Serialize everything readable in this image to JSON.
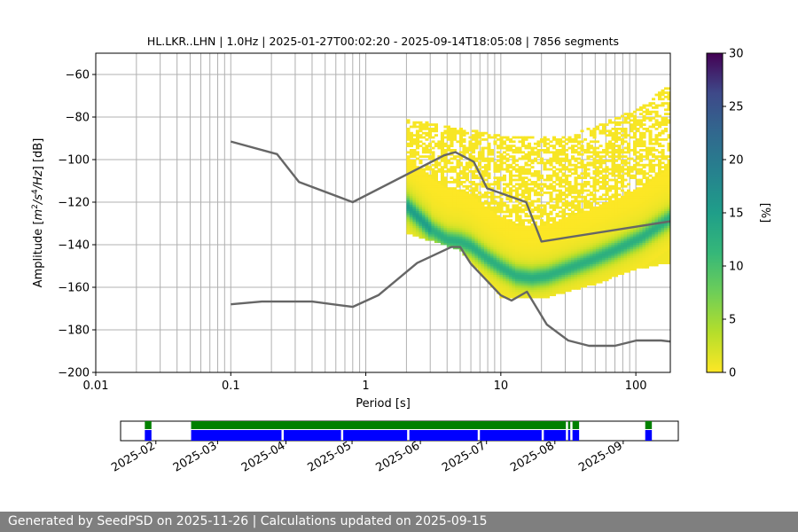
{
  "chart_data": [
    {
      "type": "heatmap",
      "title": "HL.LKR..LHN | 1.0Hz | 2025-01-27T00:02:20 - 2025-09-14T18:05:08 | 7856 segments",
      "xlabel": "Period [s]",
      "ylabel_parts": [
        "Amplitude [",
        "m",
        "2",
        "/s",
        "4",
        "/Hz",
        "] [dB]"
      ],
      "x_scale": "log",
      "xlim": [
        0.01,
        180
      ],
      "ylim": [
        -200,
        -50
      ],
      "x_ticks": [
        {
          "value": 0.01,
          "label": "0.01"
        },
        {
          "value": 0.1,
          "label": "0.1"
        },
        {
          "value": 1,
          "label": "1"
        },
        {
          "value": 10,
          "label": "10"
        },
        {
          "value": 100,
          "label": "100"
        }
      ],
      "y_ticks": [
        {
          "value": -60,
          "label": "−60"
        },
        {
          "value": -80,
          "label": "−80"
        },
        {
          "value": -100,
          "label": "−100"
        },
        {
          "value": -120,
          "label": "−120"
        },
        {
          "value": -140,
          "label": "−140"
        },
        {
          "value": -160,
          "label": "−160"
        },
        {
          "value": -180,
          "label": "−180"
        },
        {
          "value": -200,
          "label": "−200"
        }
      ],
      "grid": true,
      "colormap": "viridis",
      "colorbar": {
        "label": "[%]",
        "range": [
          0,
          30
        ],
        "ticks": [
          {
            "value": 0,
            "label": "0"
          },
          {
            "value": 5,
            "label": "5"
          },
          {
            "value": 10,
            "label": "10"
          },
          {
            "value": 15,
            "label": "15"
          },
          {
            "value": 20,
            "label": "20"
          },
          {
            "value": 25,
            "label": "25"
          },
          {
            "value": 30,
            "label": "30"
          }
        ]
      },
      "psd_mode_curve": {
        "period": [
          2.0,
          3.0,
          4.0,
          5.0,
          6.0,
          8.0,
          10.0,
          13.0,
          17.0,
          22.0,
          30.0,
          45.0,
          70.0,
          110.0,
          180.0
        ],
        "amplitude": [
          -122,
          -133,
          -138,
          -139,
          -141,
          -147,
          -151,
          -155,
          -156,
          -155,
          -152,
          -148,
          -143,
          -137,
          -128
        ]
      },
      "psd_occupied_bounds": {
        "period_range": [
          2.0,
          180.0
        ],
        "upper_db_at_period": {
          "2.0": -81,
          "10": -89,
          "30": -90,
          "100": -77,
          "180": -65
        },
        "lower_db_at_period": {
          "2.0": -135,
          "5": -143,
          "10": -165,
          "20": -166,
          "50": -159,
          "100": -152,
          "180": -149
        }
      },
      "noise_models": [
        {
          "name": "NHNM",
          "period": [
            0.1,
            0.22,
            0.32,
            0.8,
            3.8,
            4.6,
            6.3,
            7.9,
            15.4,
            20.0,
            180.0
          ],
          "amplitude": [
            -91.5,
            -97.4,
            -110.5,
            -120.0,
            -98.0,
            -96.5,
            -101.0,
            -113.5,
            -120.0,
            -138.5,
            -129
          ]
        },
        {
          "name": "NLNM",
          "period": [
            0.1,
            0.17,
            0.4,
            0.8,
            1.24,
            2.4,
            4.3,
            5.0,
            6.0,
            10.0,
            12.0,
            15.6,
            21.9,
            31.6,
            45.0,
            70.0,
            101.0,
            154.0,
            180.0
          ],
          "amplitude": [
            -168.0,
            -166.7,
            -166.7,
            -169.2,
            -163.7,
            -148.6,
            -141.1,
            -141.1,
            -149.0,
            -163.8,
            -166.2,
            -162.1,
            -177.5,
            -185.0,
            -187.5,
            -187.5,
            -185.0,
            -185.0,
            -185.5
          ]
        }
      ]
    },
    {
      "type": "timeline",
      "x_ticks": [
        "2025-02",
        "2025-03",
        "2025-04",
        "2025-05",
        "2025-06",
        "2025-07",
        "2025-08",
        "2025-09"
      ],
      "x_tick_dates": [
        "2025-02-01",
        "2025-03-01",
        "2025-04-01",
        "2025-05-01",
        "2025-06-01",
        "2025-07-01",
        "2025-08-01",
        "2025-09-01"
      ],
      "xlim": [
        "2025-01-16",
        "2025-09-26"
      ],
      "rows": [
        {
          "color": "#008000",
          "segments": [
            [
              "2025-01-27",
              "2025-01-30"
            ],
            [
              "2025-02-17",
              "2025-08-06"
            ],
            [
              "2025-08-07",
              "2025-08-08"
            ],
            [
              "2025-08-09",
              "2025-08-12"
            ],
            [
              "2025-09-11",
              "2025-09-14"
            ]
          ]
        },
        {
          "color": "#0000ff",
          "segments": [
            [
              "2025-01-27",
              "2025-01-30"
            ],
            [
              "2025-02-17",
              "2025-03-30"
            ],
            [
              "2025-03-31",
              "2025-04-26"
            ],
            [
              "2025-04-27",
              "2025-05-26"
            ],
            [
              "2025-05-27",
              "2025-06-27"
            ],
            [
              "2025-06-28",
              "2025-07-26"
            ],
            [
              "2025-07-27",
              "2025-08-06"
            ],
            [
              "2025-08-07",
              "2025-08-08"
            ],
            [
              "2025-08-09",
              "2025-08-12"
            ],
            [
              "2025-09-11",
              "2025-09-14"
            ]
          ]
        }
      ]
    }
  ],
  "footer": {
    "text": "Generated by SeedPSD on 2025-11-26 | Calculations updated on 2025-09-15"
  }
}
